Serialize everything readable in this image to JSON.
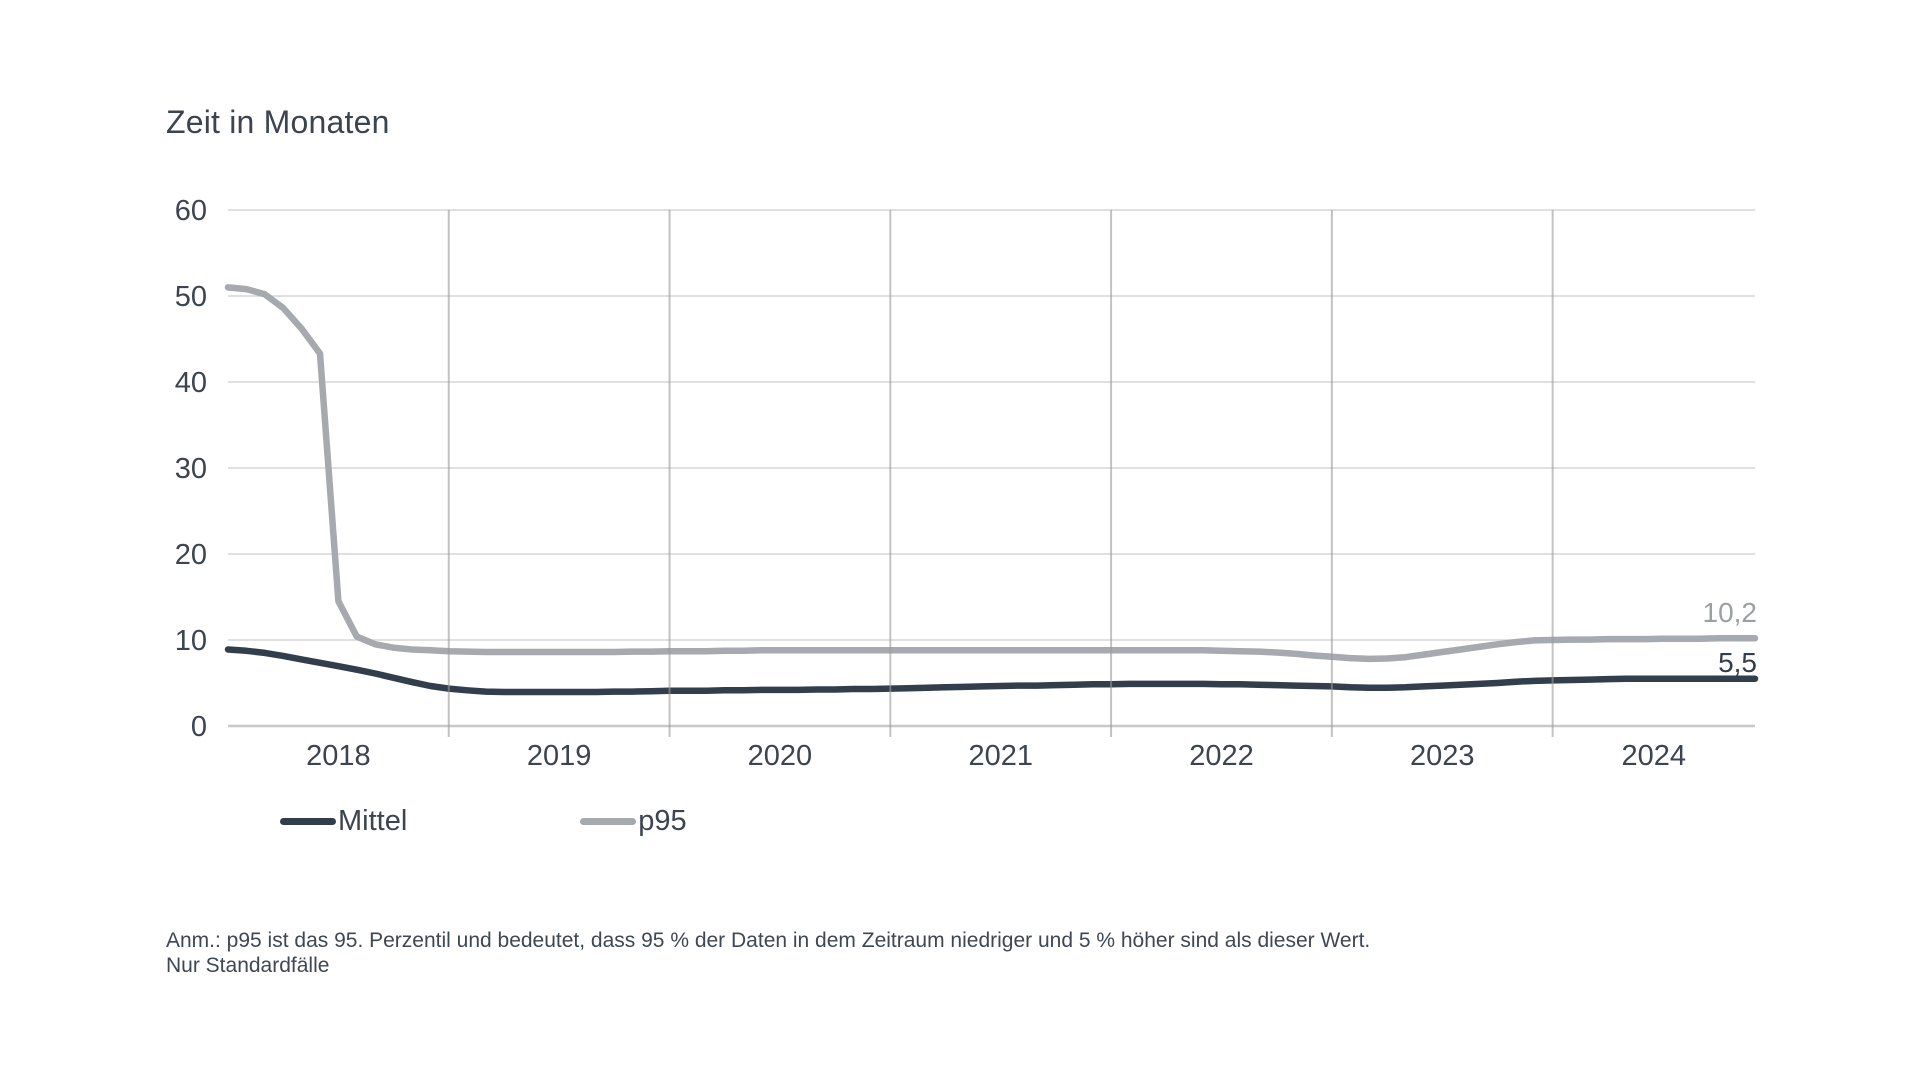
{
  "title": "Zeit in Monaten",
  "colors": {
    "text_dark": "#3b4450",
    "series_mittel": "#333e4c",
    "series_p95": "#a6a9ad",
    "end_label_p95": "#9ba0a5",
    "end_label_mittel": "#333e4c",
    "gridline_horizontal": "#d6d6d6",
    "gridline_vertical": "#9a9a9a",
    "axis_line": "#c8c8c8"
  },
  "legend": {
    "items": [
      {
        "label": "Mittel"
      },
      {
        "label": "p95"
      }
    ]
  },
  "footnote": {
    "line1": "Anm.: p95 ist das 95. Perzentil und bedeutet, dass 95 % der Daten in dem Zeitraum niedriger und 5 % höher sind als dieser Wert.",
    "line2": "Nur Standardfälle"
  },
  "chart_data": {
    "type": "line",
    "title": "Zeit in Monaten",
    "ylabel": "Zeit in Monaten",
    "xlabel": "",
    "ylim": [
      0,
      60
    ],
    "y_ticks": [
      0,
      10,
      20,
      30,
      40,
      50,
      60
    ],
    "x_year_labels": [
      "2018",
      "2019",
      "2020",
      "2021",
      "2022",
      "2023",
      "2024"
    ],
    "x_resolution": "monthly, Jan 2018 - Dec 2024",
    "grid": "horizontal light, vertical year separators dark",
    "legend_position": "bottom-left",
    "series": [
      {
        "name": "p95",
        "color": "#a6a9ad",
        "end_label": "10,2",
        "end_value": 10.2,
        "values": [
          51.0,
          50.8,
          50.2,
          48.6,
          46.2,
          43.3,
          14.5,
          10.4,
          9.5,
          9.1,
          8.9,
          8.8,
          8.7,
          8.65,
          8.6,
          8.6,
          8.6,
          8.6,
          8.6,
          8.6,
          8.6,
          8.6,
          8.65,
          8.65,
          8.7,
          8.7,
          8.7,
          8.75,
          8.75,
          8.8,
          8.8,
          8.8,
          8.8,
          8.8,
          8.8,
          8.8,
          8.8,
          8.8,
          8.8,
          8.8,
          8.8,
          8.8,
          8.8,
          8.8,
          8.8,
          8.8,
          8.8,
          8.8,
          8.8,
          8.8,
          8.8,
          8.8,
          8.8,
          8.8,
          8.75,
          8.7,
          8.65,
          8.55,
          8.4,
          8.2,
          8.05,
          7.9,
          7.8,
          7.85,
          8.0,
          8.3,
          8.6,
          8.9,
          9.2,
          9.5,
          9.75,
          9.95,
          10.0,
          10.05,
          10.05,
          10.1,
          10.1,
          10.1,
          10.15,
          10.15,
          10.15,
          10.2,
          10.2,
          10.2
        ]
      },
      {
        "name": "Mittel",
        "color": "#333e4c",
        "end_label": "5,5",
        "end_value": 5.5,
        "values": [
          8.9,
          8.75,
          8.5,
          8.15,
          7.75,
          7.35,
          6.95,
          6.55,
          6.1,
          5.6,
          5.1,
          4.65,
          4.35,
          4.15,
          4.0,
          3.95,
          3.95,
          3.95,
          3.95,
          3.95,
          3.95,
          4.0,
          4.0,
          4.05,
          4.1,
          4.1,
          4.1,
          4.15,
          4.15,
          4.2,
          4.2,
          4.2,
          4.25,
          4.25,
          4.3,
          4.3,
          4.35,
          4.4,
          4.45,
          4.5,
          4.55,
          4.6,
          4.65,
          4.7,
          4.7,
          4.75,
          4.8,
          4.85,
          4.85,
          4.9,
          4.9,
          4.9,
          4.9,
          4.9,
          4.85,
          4.85,
          4.8,
          4.75,
          4.7,
          4.65,
          4.6,
          4.5,
          4.45,
          4.45,
          4.5,
          4.6,
          4.7,
          4.8,
          4.9,
          5.0,
          5.15,
          5.25,
          5.3,
          5.35,
          5.4,
          5.45,
          5.5,
          5.5,
          5.5,
          5.5,
          5.5,
          5.5,
          5.5,
          5.5
        ]
      }
    ]
  }
}
